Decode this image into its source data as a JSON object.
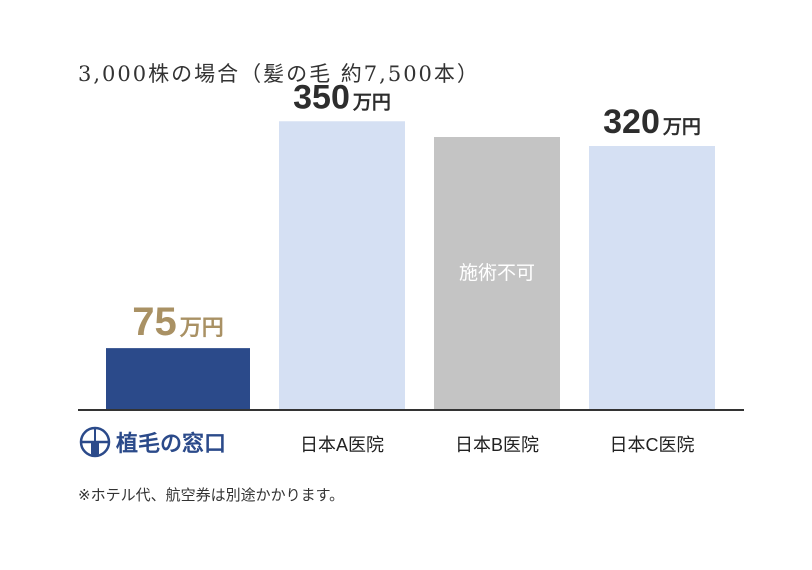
{
  "title": "3,000株の場合（髪の毛 約7,500本）",
  "footnote": "※ホテル代、航空券は別途かかります。",
  "brand": {
    "name": "植毛の窓口",
    "icon": "hair-follicle-icon",
    "color": "#2b4a8a"
  },
  "chart_data": {
    "type": "bar",
    "title": "3,000株の場合（髪の毛 約7,500本）",
    "xlabel": "",
    "ylabel": "",
    "unit": "万円",
    "categories": [
      "植毛の窓口",
      "日本A医院",
      "日本B医院",
      "日本C医院"
    ],
    "values": [
      75,
      350,
      null,
      320
    ],
    "value_labels": [
      "75",
      "350",
      "施術不可",
      "320"
    ],
    "ylim": [
      0,
      400
    ],
    "grid": false,
    "legend": "none",
    "colors": [
      "#2b4a8a",
      "#d5e0f3",
      "#c4c4c4",
      "#d5e0f3"
    ],
    "label_colors": [
      "#a99164",
      "#2d2d2d",
      "#ffffff",
      "#2d2d2d"
    ]
  }
}
